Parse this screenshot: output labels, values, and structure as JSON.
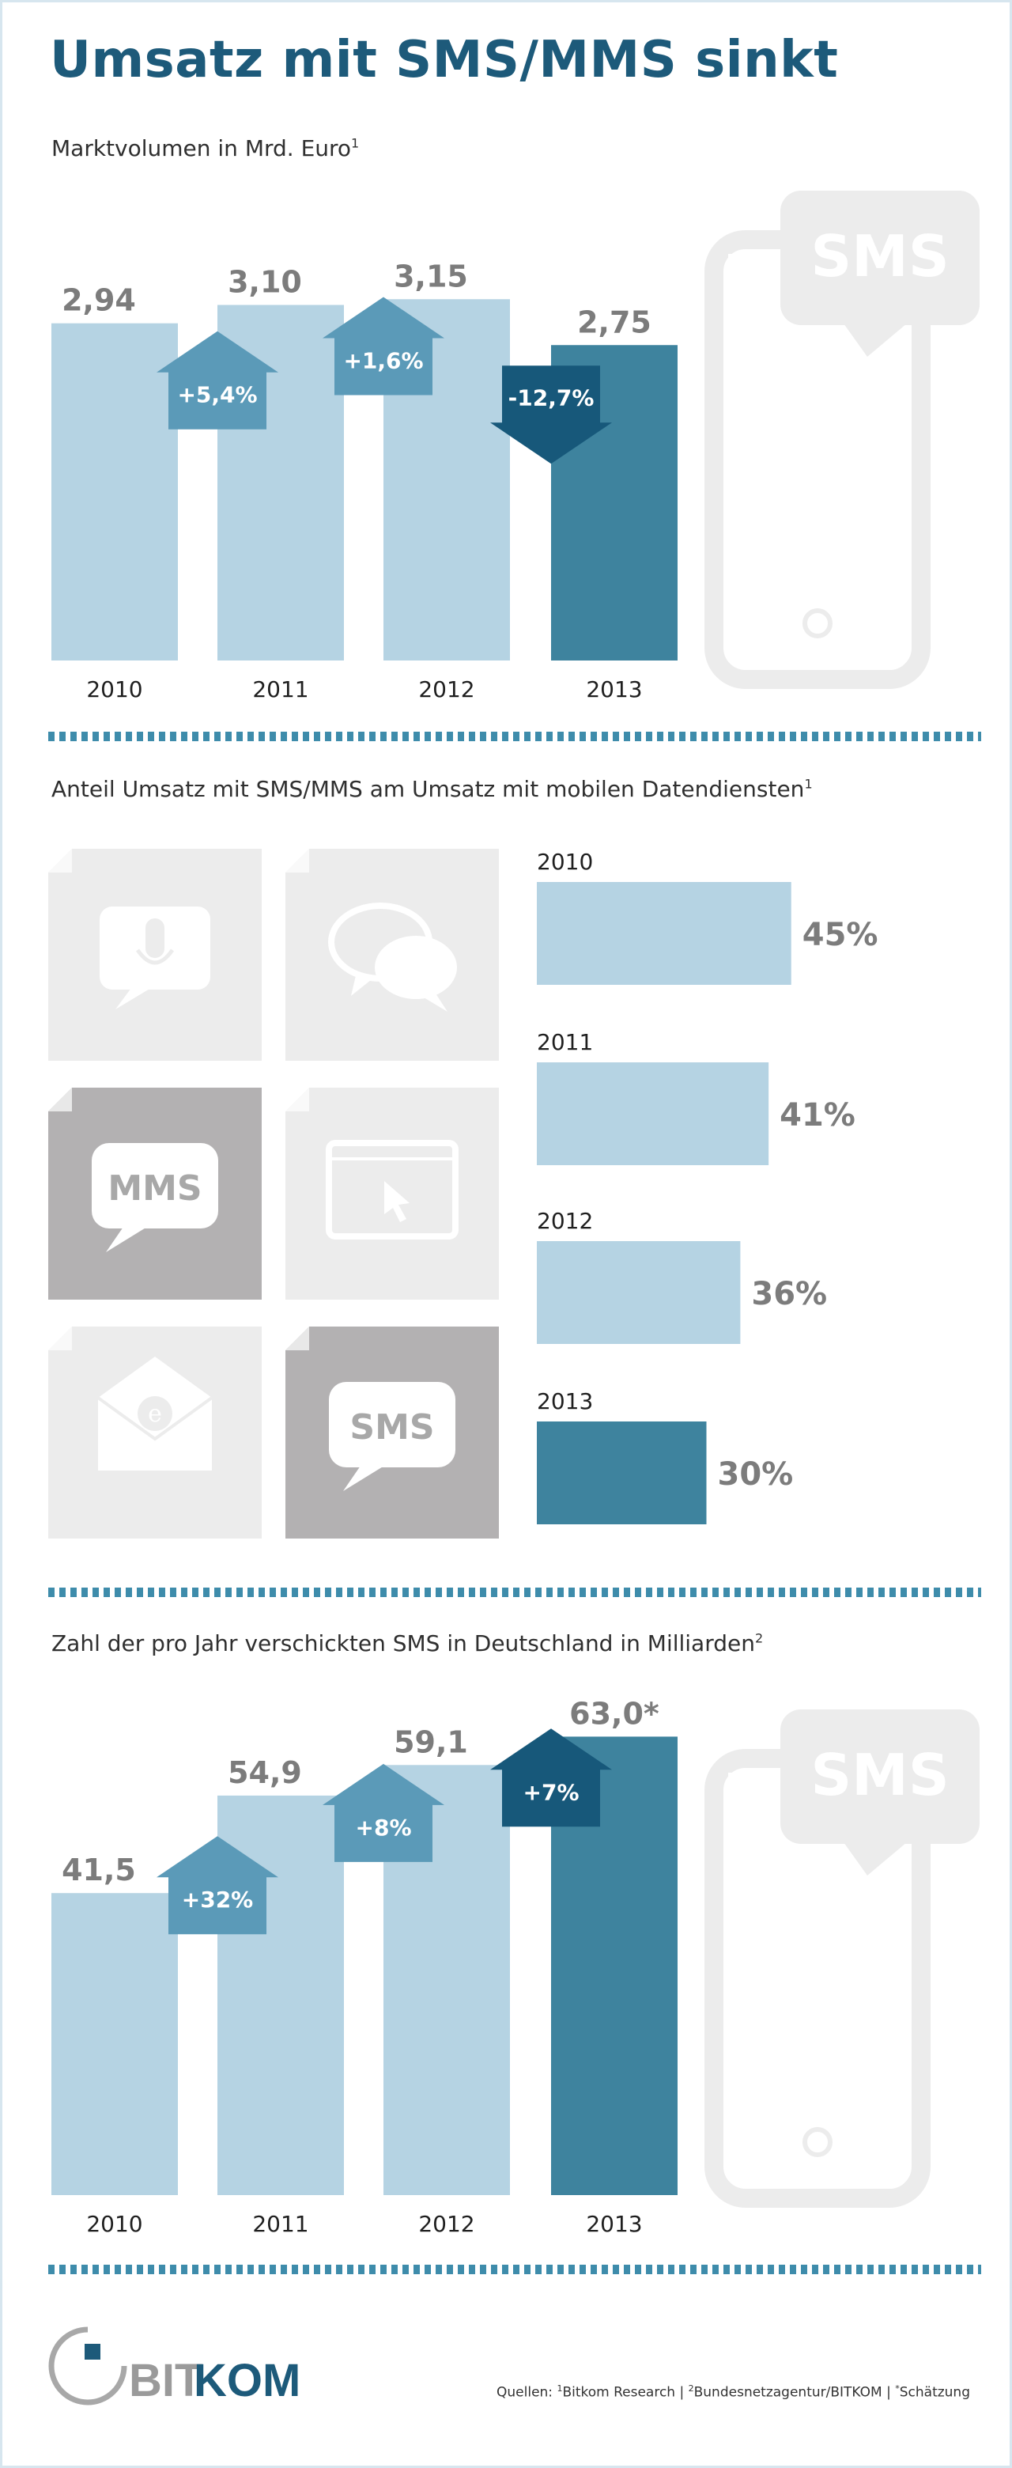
{
  "header": {
    "title": "Umsatz mit SMS/MMS sinkt"
  },
  "colors": {
    "bar_light": "#b5d3e3",
    "bar_dark": "#3e839e",
    "arrow_up": "#5b9ab8",
    "arrow_down": "#17587a",
    "arrow_up_dark": "#17587a",
    "phone_gray": "#ececec",
    "icon_gray": "#ececec",
    "icon_dark": "#b3b1b2",
    "logo_blue": "#1d5a7a"
  },
  "section1": {
    "subtitle": "Marktvolumen in Mrd. Euro",
    "footnote": "1",
    "phone_label": "SMS"
  },
  "section2": {
    "subtitle": "Anteil Umsatz mit SMS/MMS am Umsatz mit mobilen Datendiensten",
    "footnote": "1",
    "icons": [
      {
        "name": "microphone-icon",
        "label": ""
      },
      {
        "name": "chat-bubbles-icon",
        "label": ""
      },
      {
        "name": "mms-icon",
        "label": "MMS"
      },
      {
        "name": "browser-window-icon",
        "label": ""
      },
      {
        "name": "email-icon",
        "label": ""
      },
      {
        "name": "sms-icon",
        "label": "SMS"
      }
    ]
  },
  "section3": {
    "subtitle": "Zahl der pro Jahr verschickten SMS in Deutschland in Milliarden",
    "footnote": "2",
    "phone_label": "SMS"
  },
  "chart_data": [
    {
      "type": "bar",
      "title": "Marktvolumen in Mrd. Euro",
      "categories": [
        "2010",
        "2011",
        "2012",
        "2013"
      ],
      "values": [
        2.94,
        3.1,
        3.15,
        2.75
      ],
      "value_labels": [
        "2,94",
        "3,10",
        "3,15",
        "2,75"
      ],
      "changes": [
        {
          "between": [
            "2010",
            "2011"
          ],
          "label": "+5,4%",
          "direction": "up"
        },
        {
          "between": [
            "2011",
            "2012"
          ],
          "label": "+1,6%",
          "direction": "up"
        },
        {
          "between": [
            "2012",
            "2013"
          ],
          "label": "-12,7%",
          "direction": "down"
        }
      ],
      "grid": false,
      "xlabel": "",
      "ylabel": ""
    },
    {
      "type": "bar",
      "orientation": "horizontal",
      "title": "Anteil Umsatz mit SMS/MMS am Umsatz mit mobilen Datendiensten",
      "categories": [
        "2010",
        "2011",
        "2012",
        "2013"
      ],
      "values": [
        45,
        41,
        36,
        30
      ],
      "value_labels": [
        "45%",
        "41%",
        "36%",
        "30%"
      ],
      "unit": "%",
      "grid": false
    },
    {
      "type": "bar",
      "title": "Zahl der pro Jahr verschickten SMS in Deutschland in Milliarden",
      "categories": [
        "2010",
        "2011",
        "2012",
        "2013"
      ],
      "values": [
        41.5,
        54.9,
        59.1,
        63.0
      ],
      "value_labels": [
        "41,5",
        "54,9",
        "59,1",
        "63,0*"
      ],
      "changes": [
        {
          "between": [
            "2010",
            "2011"
          ],
          "label": "+32%",
          "direction": "up"
        },
        {
          "between": [
            "2011",
            "2012"
          ],
          "label": "+8%",
          "direction": "up"
        },
        {
          "between": [
            "2012",
            "2013"
          ],
          "label": "+7%",
          "direction": "up"
        }
      ],
      "grid": false,
      "xlabel": "",
      "ylabel": ""
    }
  ],
  "footer": {
    "logo_part1": "BIT",
    "logo_part2": "KOM",
    "sources_prefix": "Quellen: ",
    "source1_mark": "1",
    "source1": "Bitkom Research | ",
    "source2_mark": "2",
    "source2": "Bundesnetzagentur/BITKOM | ",
    "source3_mark": "*",
    "source3": "Schätzung"
  }
}
